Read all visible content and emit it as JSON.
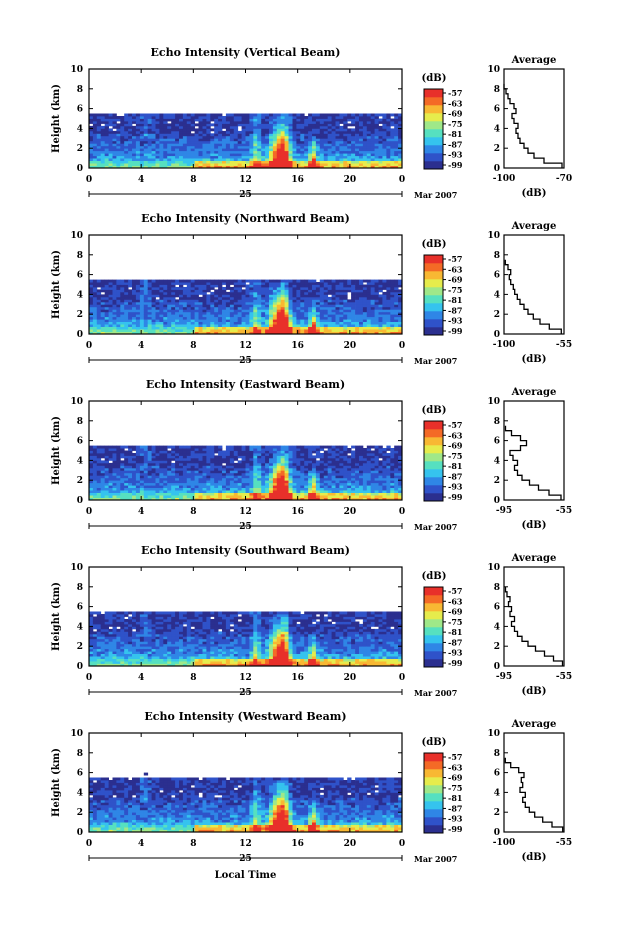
{
  "chart_data": [
    {
      "type": "heatmap",
      "title": "Echo Intensity (Vertical Beam)",
      "ylabel": "Height (km)",
      "xticks": [
        "0",
        "4",
        "8",
        "12",
        "16",
        "20",
        "0"
      ],
      "yticks": [
        "0",
        "2",
        "4",
        "6",
        "8",
        "10"
      ],
      "xlim": [
        0,
        24
      ],
      "ylim": [
        0,
        10
      ],
      "date_label": "25",
      "month_label": "Mar 2007",
      "colorbar": {
        "label": "(dB)",
        "ticks": [
          "-57",
          "-63",
          "-69",
          "-75",
          "-81",
          "-87",
          "-93",
          "-99"
        ]
      },
      "average": {
        "title": "Average",
        "xlabel": "(dB)",
        "xticks": [
          "-100",
          "-70"
        ],
        "xlim": [
          -100,
          -70
        ],
        "yticks": [
          "0",
          "2",
          "4",
          "6",
          "8",
          "10"
        ],
        "height": [
          0,
          0.5,
          1,
          1.5,
          2,
          2.5,
          3,
          3.5,
          4,
          4.5,
          5,
          5.5,
          6,
          6.5,
          7,
          7.5,
          8
        ],
        "db": [
          -71,
          -80,
          -85,
          -88,
          -90,
          -92,
          -93,
          -94,
          -93,
          -95,
          -96,
          -94,
          -95,
          -97,
          -98,
          -99,
          -100
        ]
      }
    },
    {
      "type": "heatmap",
      "title": "Echo Intensity (Northward Beam)",
      "ylabel": "Height (km)",
      "xticks": [
        "0",
        "4",
        "8",
        "12",
        "16",
        "20",
        "0"
      ],
      "yticks": [
        "0",
        "2",
        "4",
        "6",
        "8",
        "10"
      ],
      "xlim": [
        0,
        24
      ],
      "ylim": [
        0,
        10
      ],
      "date_label": "25",
      "month_label": "Mar 2007",
      "colorbar": {
        "label": "(dB)",
        "ticks": [
          "-57",
          "-63",
          "-69",
          "-75",
          "-81",
          "-87",
          "-93",
          "-99"
        ]
      },
      "average": {
        "title": "Average",
        "xlabel": "(dB)",
        "xticks": [
          "-100",
          "-55"
        ],
        "xlim": [
          -100,
          -55
        ],
        "yticks": [
          "0",
          "2",
          "4",
          "6",
          "8",
          "10"
        ],
        "height": [
          0,
          0.5,
          1,
          1.5,
          2,
          2.5,
          3,
          3.5,
          4,
          4.5,
          5,
          5.5,
          6,
          6.5,
          7
        ],
        "db": [
          -57,
          -66,
          -73,
          -78,
          -82,
          -85,
          -88,
          -90,
          -92,
          -93,
          -95,
          -96,
          -95,
          -97,
          -99
        ]
      }
    },
    {
      "type": "heatmap",
      "title": "Echo Intensity (Eastward Beam)",
      "ylabel": "Height (km)",
      "xticks": [
        "0",
        "4",
        "8",
        "12",
        "16",
        "20",
        "0"
      ],
      "yticks": [
        "0",
        "2",
        "4",
        "6",
        "8",
        "10"
      ],
      "xlim": [
        0,
        24
      ],
      "ylim": [
        0,
        10
      ],
      "date_label": "25",
      "month_label": "Mar 2007",
      "colorbar": {
        "label": "(dB)",
        "ticks": [
          "-57",
          "-63",
          "-69",
          "-75",
          "-81",
          "-87",
          "-93",
          "-99"
        ]
      },
      "average": {
        "title": "Average",
        "xlabel": "(dB)",
        "xticks": [
          "-95",
          "-55"
        ],
        "xlim": [
          -95,
          -55
        ],
        "yticks": [
          "0",
          "2",
          "4",
          "6",
          "8",
          "10"
        ],
        "height": [
          0,
          0.5,
          1,
          1.5,
          2,
          2.5,
          3,
          3.5,
          4,
          4.5,
          5,
          5.5,
          6,
          6.5,
          7
        ],
        "db": [
          -57,
          -65,
          -72,
          -78,
          -83,
          -86,
          -88,
          -86,
          -89,
          -91,
          -84,
          -80,
          -84,
          -90,
          -94
        ]
      }
    },
    {
      "type": "heatmap",
      "title": "Echo Intensity (Southward Beam)",
      "ylabel": "Height (km)",
      "xticks": [
        "0",
        "4",
        "8",
        "12",
        "16",
        "20",
        "0"
      ],
      "yticks": [
        "0",
        "2",
        "4",
        "6",
        "8",
        "10"
      ],
      "xlim": [
        0,
        24
      ],
      "ylim": [
        0,
        10
      ],
      "date_label": "25",
      "month_label": "Mar 2007",
      "colorbar": {
        "label": "(dB)",
        "ticks": [
          "-57",
          "-63",
          "-69",
          "-75",
          "-81",
          "-87",
          "-93",
          "-99"
        ]
      },
      "average": {
        "title": "Average",
        "xlabel": "(dB)",
        "xticks": [
          "-95",
          "-55"
        ],
        "xlim": [
          -95,
          -55
        ],
        "yticks": [
          "0",
          "2",
          "4",
          "6",
          "8",
          "10"
        ],
        "height": [
          0,
          0.5,
          1,
          1.5,
          2,
          2.5,
          3,
          3.5,
          4,
          4.5,
          5,
          5.5,
          6,
          6.5,
          7,
          7.5
        ],
        "db": [
          -56,
          -62,
          -68,
          -74,
          -79,
          -83,
          -86,
          -88,
          -90,
          -88,
          -91,
          -90,
          -92,
          -91,
          -93,
          -94
        ]
      }
    },
    {
      "type": "heatmap",
      "title": "Echo Intensity (Westward Beam)",
      "ylabel": "Height (km)",
      "xticks": [
        "0",
        "4",
        "8",
        "12",
        "16",
        "20",
        "0"
      ],
      "yticks": [
        "0",
        "2",
        "4",
        "6",
        "8",
        "10"
      ],
      "xlim": [
        0,
        24
      ],
      "ylim": [
        0,
        10
      ],
      "date_label": "25",
      "month_label": "Mar 2007",
      "colorbar": {
        "label": "(dB)",
        "ticks": [
          "-57",
          "-63",
          "-69",
          "-75",
          "-81",
          "-87",
          "-93",
          "-99"
        ]
      },
      "average": {
        "title": "Average",
        "xlabel": "(dB)",
        "xticks": [
          "-100",
          "-55"
        ],
        "xlim": [
          -100,
          -55
        ],
        "yticks": [
          "0",
          "2",
          "4",
          "6",
          "8",
          "10"
        ],
        "height": [
          0,
          0.5,
          1,
          1.5,
          2,
          2.5,
          3,
          3.5,
          4,
          4.5,
          5,
          5.5,
          6,
          6.5,
          7
        ],
        "db": [
          -56,
          -64,
          -71,
          -77,
          -81,
          -84,
          -86,
          -84,
          -88,
          -86,
          -87,
          -85,
          -89,
          -95,
          -99
        ]
      }
    }
  ],
  "xlabel": "Local Time",
  "colormap": [
    "#2b2f8f",
    "#2f52c9",
    "#2f86e6",
    "#35c3ee",
    "#56e0c0",
    "#9fe889",
    "#e6ec4c",
    "#f8b833",
    "#f46a26",
    "#e8302a"
  ]
}
